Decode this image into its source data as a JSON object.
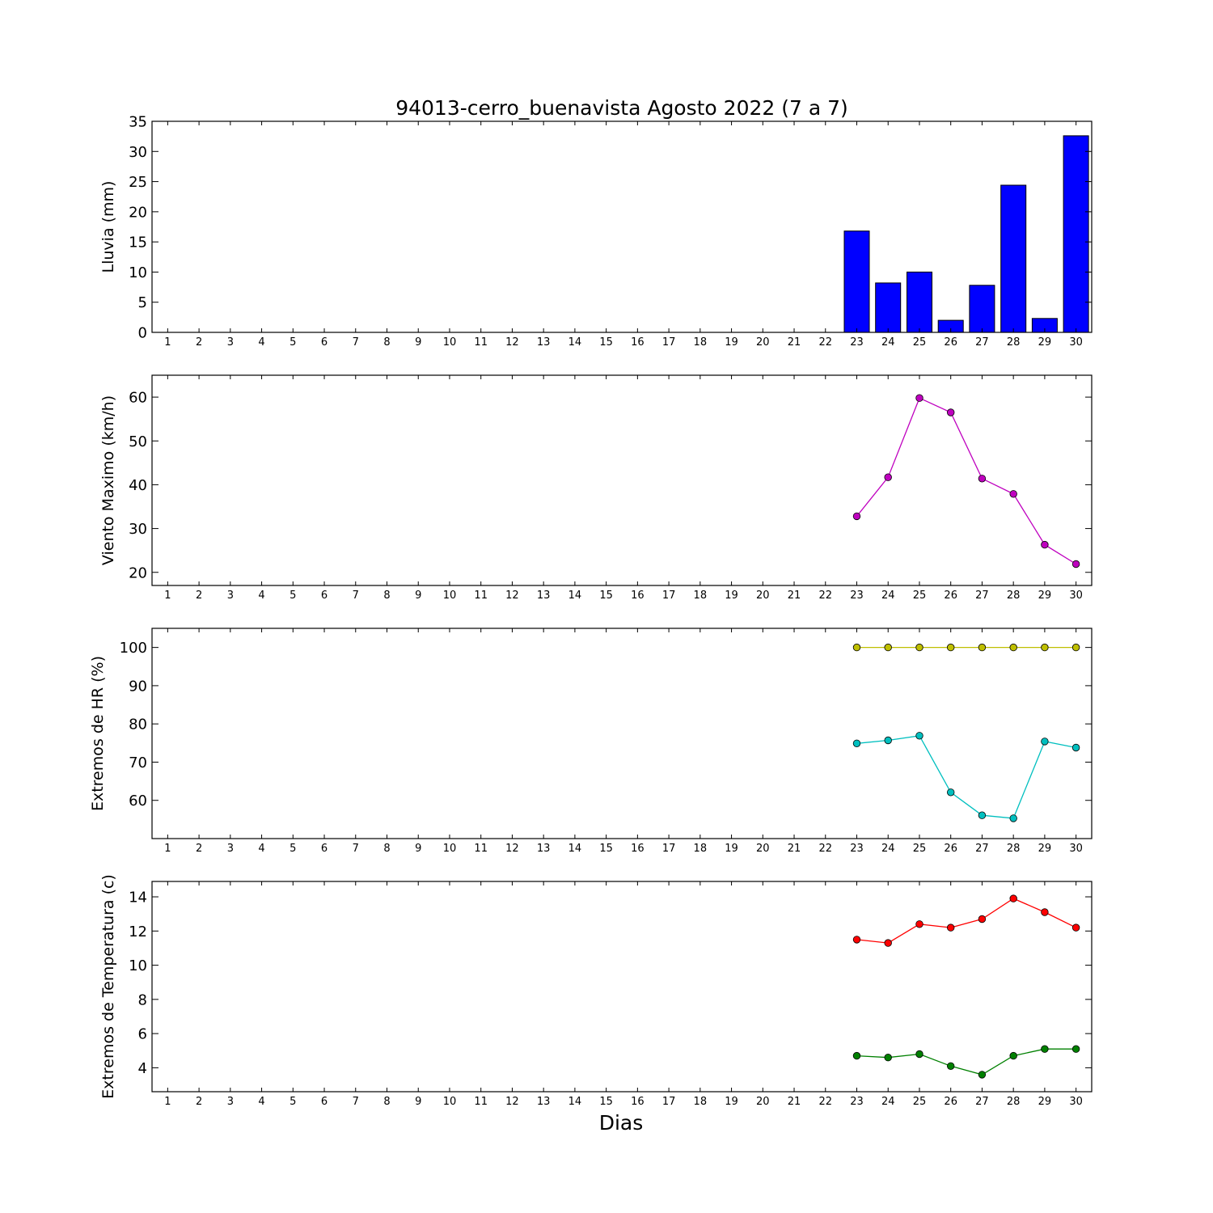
{
  "title": "94013-cerro_buenavista Agosto 2022  (7 a 7)",
  "xlabel": "Dias",
  "x_ticks": [
    "1",
    "2",
    "3",
    "4",
    "5",
    "6",
    "7",
    "8",
    "9",
    "10",
    "11",
    "12",
    "13",
    "14",
    "15",
    "16",
    "17",
    "18",
    "19",
    "20",
    "21",
    "22",
    "23",
    "24",
    "25",
    "26",
    "27",
    "28",
    "29",
    "30"
  ],
  "chart_data": [
    {
      "type": "bar",
      "ylabel": "Lluvia (mm)",
      "ylim": [
        0,
        35
      ],
      "yticks": [
        0,
        5,
        10,
        15,
        20,
        25,
        30,
        35
      ],
      "xlim": [
        0.5,
        30.5
      ],
      "grid": false,
      "series": [
        {
          "color": "#0000ff",
          "x": [
            23,
            24,
            25,
            26,
            27,
            28,
            29,
            30
          ],
          "values": [
            16.8,
            8.2,
            10.0,
            2.0,
            7.8,
            24.4,
            2.3,
            32.6
          ]
        }
      ]
    },
    {
      "type": "line",
      "ylabel": "Viento Maximo (km/h)",
      "ylim": [
        17,
        65
      ],
      "yticks": [
        20,
        30,
        40,
        50,
        60
      ],
      "xlim": [
        0.5,
        30.5
      ],
      "grid": false,
      "series": [
        {
          "color": "#bf00bf",
          "x": [
            23,
            24,
            25,
            26,
            27,
            28,
            29,
            30
          ],
          "values": [
            32.8,
            41.7,
            59.8,
            56.5,
            41.4,
            37.9,
            26.3,
            21.9
          ]
        }
      ]
    },
    {
      "type": "line",
      "ylabel": "Extremos de HR (%)",
      "ylim": [
        50,
        105
      ],
      "yticks": [
        60,
        70,
        80,
        90,
        100
      ],
      "xlim": [
        0.5,
        30.5
      ],
      "grid": false,
      "series": [
        {
          "color": "#bfbf00",
          "x": [
            23,
            24,
            25,
            26,
            27,
            28,
            29,
            30
          ],
          "values": [
            100,
            100,
            100,
            100,
            100,
            100,
            100,
            100
          ]
        },
        {
          "color": "#00bfbf",
          "x": [
            23,
            24,
            25,
            26,
            27,
            28,
            29,
            30
          ],
          "values": [
            74.9,
            75.7,
            76.9,
            62.1,
            56.1,
            55.3,
            75.4,
            73.8
          ]
        }
      ]
    },
    {
      "type": "line",
      "ylabel": "Extremos de Temperatura (c)",
      "ylim": [
        2.6,
        14.9
      ],
      "yticks": [
        4,
        6,
        8,
        10,
        12,
        14
      ],
      "xlim": [
        0.5,
        30.5
      ],
      "grid": false,
      "series": [
        {
          "color": "#ff0000",
          "x": [
            23,
            24,
            25,
            26,
            27,
            28,
            29,
            30
          ],
          "values": [
            11.5,
            11.3,
            12.4,
            12.2,
            12.7,
            13.9,
            13.1,
            12.2
          ]
        },
        {
          "color": "#008000",
          "x": [
            23,
            24,
            25,
            26,
            27,
            28,
            29,
            30
          ],
          "values": [
            4.7,
            4.6,
            4.8,
            4.1,
            3.6,
            4.7,
            5.1,
            5.1
          ]
        }
      ]
    }
  ]
}
